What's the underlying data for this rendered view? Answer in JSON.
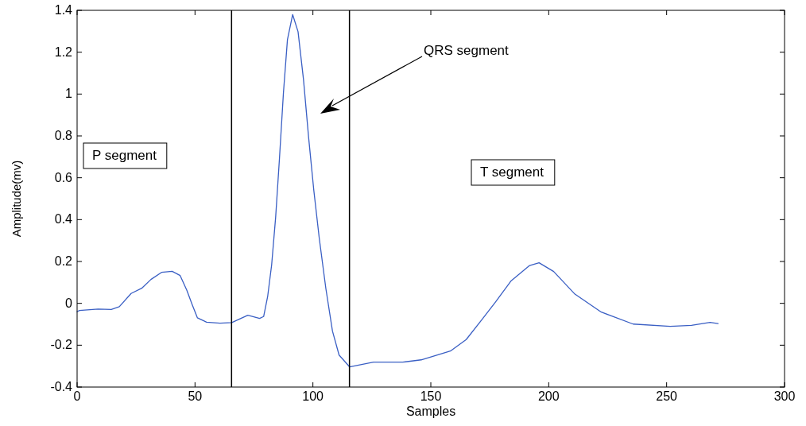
{
  "chart_data": {
    "type": "line",
    "xlabel": "Samples",
    "ylabel": "Amplitude(mv)",
    "xlim": [
      0,
      300
    ],
    "xticks": [
      0,
      50,
      100,
      150,
      200,
      250,
      300
    ],
    "ylim": [
      -0.4,
      1.4
    ],
    "yticks": [
      -0.4,
      -0.2,
      0,
      0.2,
      0.4,
      0.6,
      0.8,
      1,
      1.2,
      1.4
    ],
    "grid": false,
    "annotations": [
      "P segment",
      "QRS segment",
      "T segment"
    ],
    "ref_lines": [
      {
        "axis": "x",
        "value": 65.5,
        "color": "#000000"
      },
      {
        "axis": "x",
        "value": 115.5,
        "color": "#000000"
      }
    ],
    "series": [
      {
        "color": "#3a5fc4",
        "x": [
          0,
          1,
          8.9,
          14.5,
          17.9,
          22.9,
          27.4,
          31.3,
          35.8,
          40.3,
          43.7,
          46.5,
          48.8,
          51,
          54.9,
          60.6,
          65.6,
          72.4,
          77.4,
          79.1,
          80.8,
          82.5,
          84.2,
          85.8,
          87.5,
          89.2,
          91.4,
          93.7,
          96,
          98.2,
          100.4,
          102.7,
          105.5,
          108.3,
          111.1,
          115.6,
          125.7,
          138.1,
          145.9,
          158.3,
          165,
          171.8,
          177.4,
          184.1,
          191.9,
          195.9,
          202.1,
          211.1,
          222.3,
          235.8,
          251.5,
          260.5,
          268.4,
          271.8
        ],
        "values": [
          -0.04,
          -0.034,
          -0.027,
          -0.029,
          -0.016,
          0.047,
          0.072,
          0.114,
          0.148,
          0.153,
          0.133,
          0.063,
          -0.006,
          -0.069,
          -0.09,
          -0.095,
          -0.092,
          -0.057,
          -0.072,
          -0.063,
          0.032,
          0.184,
          0.412,
          0.69,
          1.006,
          1.26,
          1.38,
          1.298,
          1.07,
          0.79,
          0.538,
          0.31,
          0.07,
          -0.133,
          -0.247,
          -0.304,
          -0.281,
          -0.281,
          -0.27,
          -0.228,
          -0.173,
          -0.076,
          0.006,
          0.108,
          0.181,
          0.194,
          0.152,
          0.044,
          -0.042,
          -0.099,
          -0.11,
          -0.105,
          -0.091,
          -0.097
        ]
      }
    ]
  }
}
